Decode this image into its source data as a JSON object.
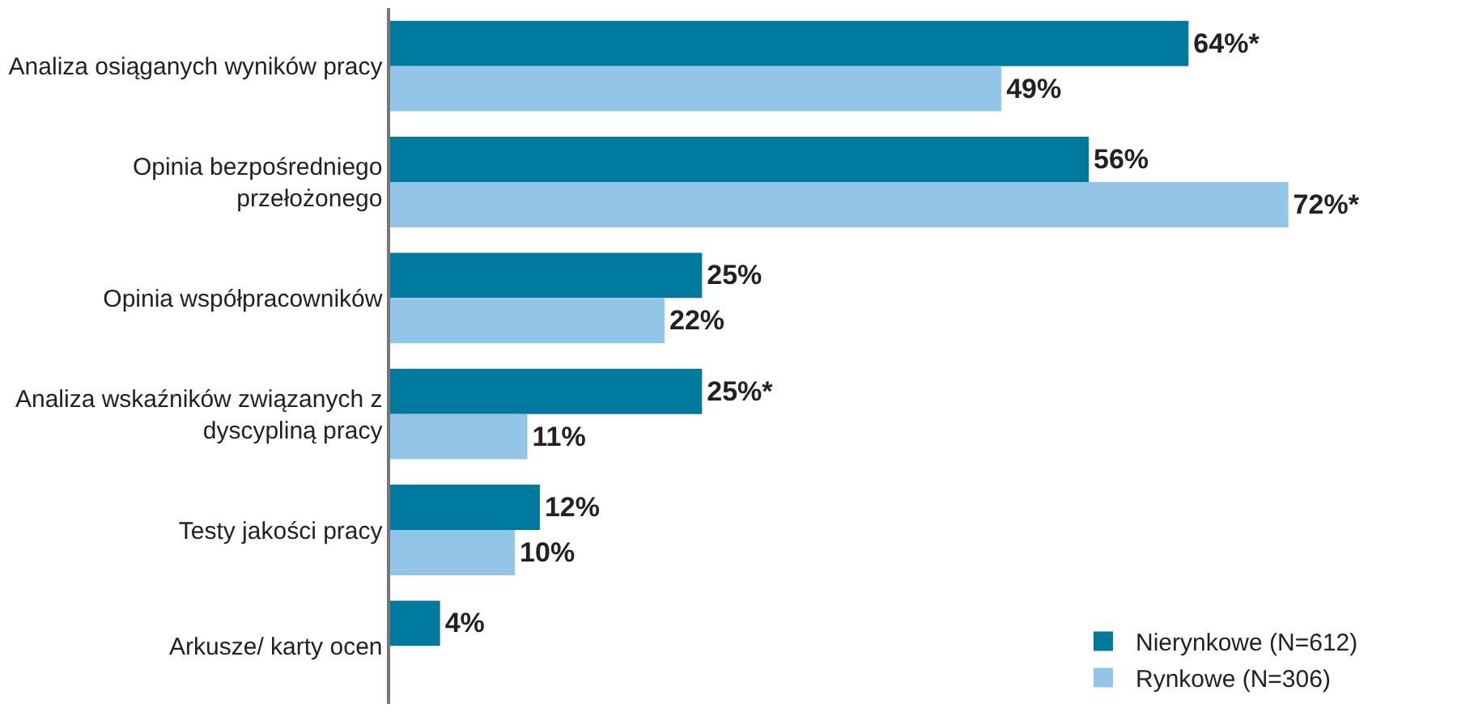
{
  "chart_data": {
    "type": "bar",
    "orientation": "horizontal",
    "categories": [
      "Analiza osiąganych wyników pracy",
      "Opinia bezpośredniego przełożonego",
      "Opinia współpracowników",
      "Analiza wskaźników związanych z dyscypliną pracy",
      "Testy jakości pracy",
      "Arkusze/ karty ocen"
    ],
    "series": [
      {
        "name": "Nierynkowe (N=612)",
        "color": "#00799f",
        "values": [
          64,
          56,
          25,
          25,
          12,
          4
        ],
        "value_labels": [
          "64%*",
          "56%",
          "25%",
          "25%*",
          "12%",
          "4%"
        ]
      },
      {
        "name": "Rynkowe (N=306)",
        "color": "#92c5e8",
        "values": [
          49,
          72,
          22,
          11,
          10,
          null
        ],
        "value_labels": [
          "49%",
          "72%*",
          "22%",
          "11%",
          "10%",
          null
        ]
      }
    ],
    "tick_labels": "y",
    "legend": "bottom right"
  }
}
